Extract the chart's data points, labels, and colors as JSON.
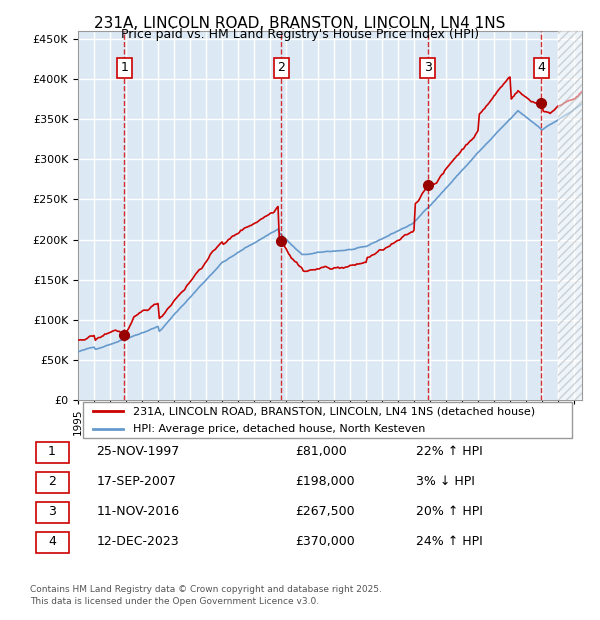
{
  "title1": "231A, LINCOLN ROAD, BRANSTON, LINCOLN, LN4 1NS",
  "title2": "Price paid vs. HM Land Registry's House Price Index (HPI)",
  "legend_line1": "231A, LINCOLN ROAD, BRANSTON, LINCOLN, LN4 1NS (detached house)",
  "legend_line2": "HPI: Average price, detached house, North Kesteven",
  "footnote1": "Contains HM Land Registry data © Crown copyright and database right 2025.",
  "footnote2": "This data is licensed under the Open Government Licence v3.0.",
  "sale_markers": [
    {
      "num": 1,
      "date": "25-NOV-1997",
      "price": 81000,
      "rel": "22% ↑ HPI",
      "year": 1997.9
    },
    {
      "num": 2,
      "date": "17-SEP-2007",
      "price": 198000,
      "rel": "3% ↓ HPI",
      "year": 2007.71
    },
    {
      "num": 3,
      "date": "11-NOV-2016",
      "price": 267500,
      "rel": "20% ↑ HPI",
      "year": 2016.86
    },
    {
      "num": 4,
      "date": "12-DEC-2023",
      "price": 370000,
      "rel": "24% ↑ HPI",
      "year": 2023.95
    }
  ],
  "bg_color": "#dce9f5",
  "grid_color": "#ffffff",
  "red_line_color": "#cc0000",
  "blue_line_color": "#6699cc",
  "dashed_line_color": "#cc0000",
  "marker_color": "#990000",
  "hatch_color": "#cccccc",
  "ylim": [
    0,
    460000
  ],
  "xlim_start": 1995.0,
  "xlim_end": 2026.5
}
